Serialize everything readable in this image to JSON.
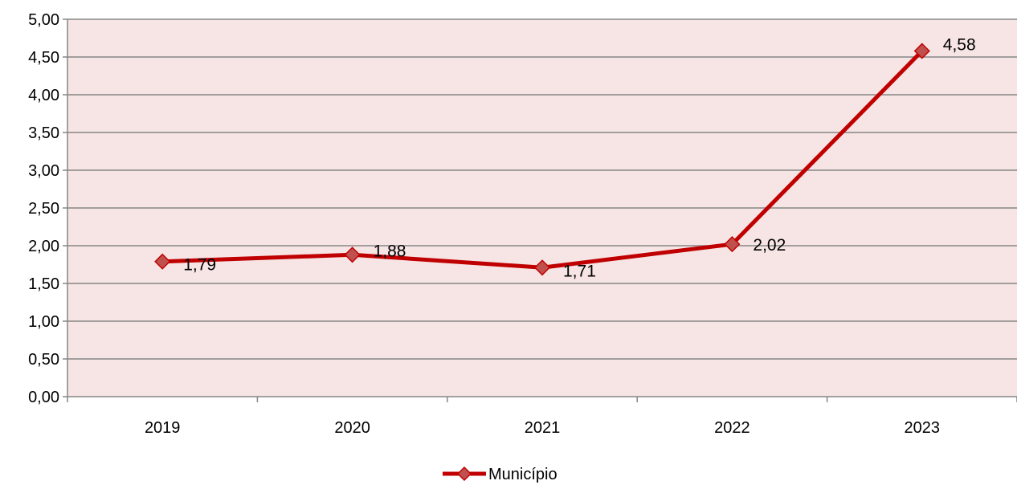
{
  "chart_data": {
    "type": "line",
    "categories": [
      "2019",
      "2020",
      "2021",
      "2022",
      "2023"
    ],
    "series": [
      {
        "name": "Município",
        "values": [
          1.79,
          1.88,
          1.71,
          2.02,
          4.58
        ],
        "labels": [
          "1,79",
          "1,88",
          "1,71",
          "2,02",
          "4,58"
        ],
        "color": "#C00000",
        "marker": "diamond",
        "marker_fill": "#C0504D"
      }
    ],
    "ylim": [
      0,
      5
    ],
    "y_ticks": [
      0,
      0.5,
      1,
      1.5,
      2,
      2.5,
      3,
      3.5,
      4,
      4.5,
      5
    ],
    "y_tick_labels": [
      "0,00",
      "0,50",
      "1,00",
      "1,50",
      "2,00",
      "2,50",
      "3,00",
      "3,50",
      "4,00",
      "4,50",
      "5,00"
    ],
    "title": "",
    "xlabel": "",
    "ylabel": "",
    "grid": "horizontal",
    "legend_position": "bottom",
    "plot_background": "#F7E4E4",
    "gridline_color": "#868686"
  }
}
